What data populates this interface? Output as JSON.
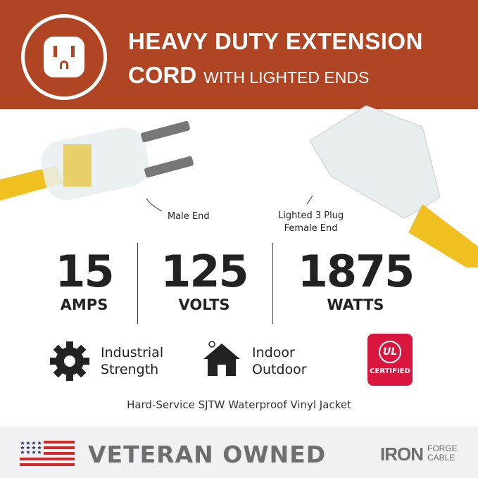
{
  "header": {
    "title_line1": "HEAVY DUTY EXTENSION",
    "title_line2": "CORD",
    "subtitle": "WITH LIGHTED ENDS",
    "icon": "outlet-icon",
    "color": "#b04524"
  },
  "labels": {
    "male": "Male End",
    "female_line1": "Lighted 3 Plug",
    "female_line2": "Female End"
  },
  "stats": [
    {
      "value": "15",
      "unit": "AMPS"
    },
    {
      "value": "125",
      "unit": "VOLTS"
    },
    {
      "value": "1875",
      "unit": "WATTS"
    }
  ],
  "features": [
    {
      "icon": "gear-icon",
      "line1": "Industrial",
      "line2": "Strength"
    },
    {
      "icon": "house-sun-icon",
      "line1": "Indoor",
      "line2": "Outdoor"
    }
  ],
  "ul_badge": {
    "logo": "UL",
    "text": "CERTIFIED",
    "color": "#d8163e"
  },
  "jacket": "Hard-Service SJTW Waterproof Vinyl Jacket",
  "footer": {
    "flag_icon": "us-flag-icon",
    "text": "VETERAN OWNED",
    "brand_main": "IRON",
    "brand_line1": "FORGE",
    "brand_line2": "CABLE"
  }
}
